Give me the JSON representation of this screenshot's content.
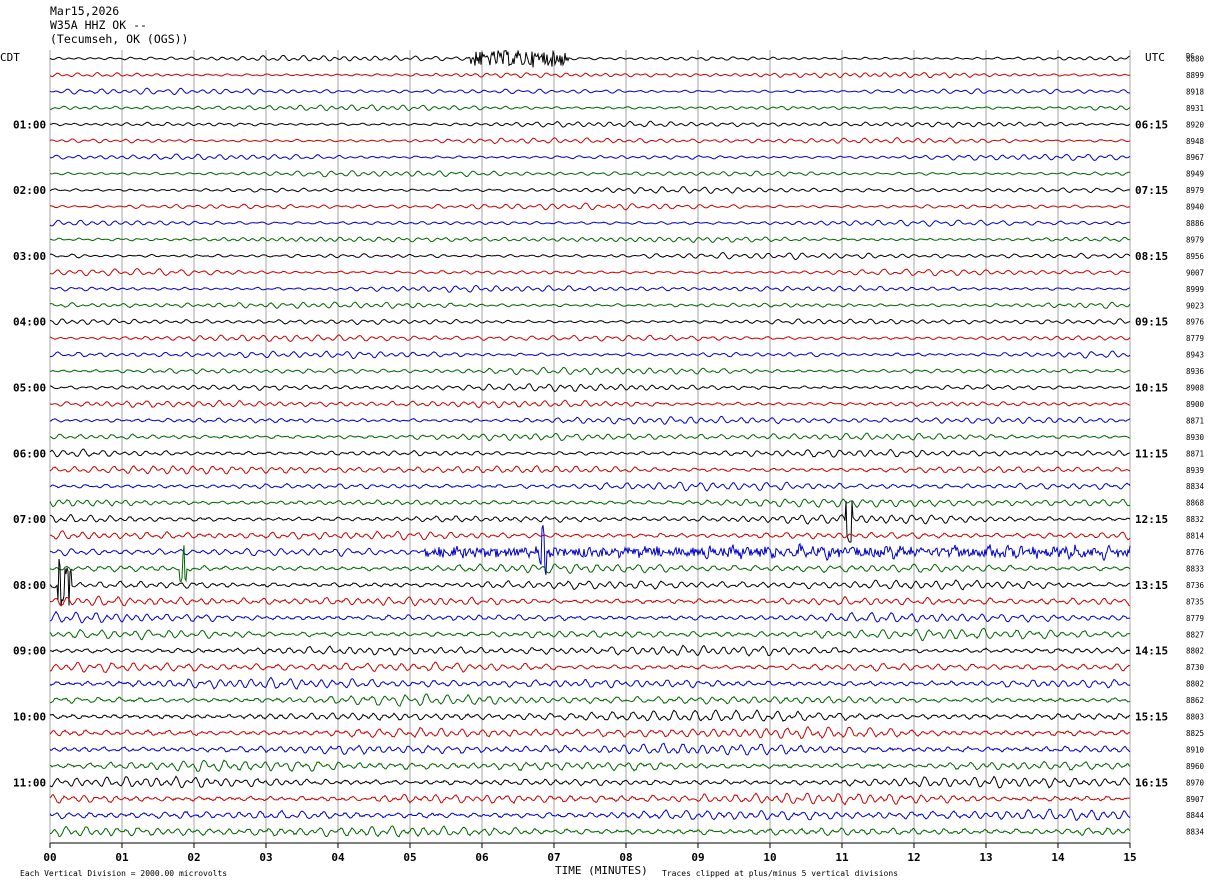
{
  "header": {
    "date": "Mar15,2026",
    "station": "W35A HHZ OK --",
    "location": "(Tecumseh, OK (OGS))"
  },
  "left_tz": "CDT",
  "right_tz": "UTC",
  "dc_label": "DC",
  "footer": {
    "scale_note": "Each Vertical Division = 2000.00 microvolts",
    "xlabel": "TIME (MINUTES)",
    "clip_note": "Traces clipped at plus/minus 5 vertical divisions"
  },
  "colors": {
    "black": "#000000",
    "red": "#cc0000",
    "blue": "#0000cc",
    "green": "#006600",
    "grid": "#808080"
  },
  "chart_data": {
    "type": "line",
    "subtype": "helicorder",
    "xlabel": "TIME (MINUTES)",
    "xlim": [
      0,
      15
    ],
    "x_ticks": [
      "00",
      "01",
      "02",
      "03",
      "04",
      "05",
      "06",
      "07",
      "08",
      "09",
      "10",
      "11",
      "12",
      "13",
      "14",
      "15"
    ],
    "grid": true,
    "trace_minutes": 15,
    "trace_color_cycle": [
      "black",
      "red",
      "blue",
      "green"
    ],
    "left_hour_labels": [
      "01:00",
      "02:00",
      "03:00",
      "04:00",
      "05:00",
      "06:00",
      "07:00",
      "08:00",
      "09:00",
      "10:00",
      "11:00"
    ],
    "right_hour_labels": [
      "06:15",
      "07:15",
      "08:15",
      "09:15",
      "10:15",
      "11:15",
      "12:15",
      "13:15",
      "14:15",
      "15:15",
      "16:15"
    ],
    "dc_offsets": [
      "8880",
      "8899",
      "8918",
      "8931",
      "8920",
      "8948",
      "8967",
      "8949",
      "8979",
      "8940",
      "8886",
      "8979",
      "8956",
      "9007",
      "8999",
      "9023",
      "8976",
      "8779",
      "8943",
      "8936",
      "8908",
      "8900",
      "8871",
      "8930",
      "8871",
      "8939",
      "8834",
      "8868",
      "8832",
      "8814",
      "8776",
      "8833",
      "8736",
      "8735",
      "8779",
      "8827",
      "8802",
      "8730",
      "8802",
      "8862",
      "8803",
      "8825",
      "8910",
      "8960",
      "8970",
      "8907",
      "8844",
      "8834"
    ],
    "trace_activity": [
      0.25,
      0.28,
      0.3,
      0.3,
      0.32,
      0.33,
      0.33,
      0.34,
      0.35,
      0.36,
      0.36,
      0.37,
      0.38,
      0.4,
      0.4,
      0.4,
      0.42,
      0.45,
      0.48,
      0.5,
      0.52,
      0.55,
      0.58,
      0.6,
      0.62,
      0.68,
      0.7,
      0.72,
      0.78,
      0.85,
      0.9,
      0.9,
      0.92,
      1.0,
      0.95,
      1.0,
      0.95,
      1.0,
      1.05,
      1.05,
      1.1,
      1.2,
      1.15,
      1.1,
      1.1,
      1.15,
      1.2,
      1.2
    ],
    "events": [
      {
        "trace": 0,
        "start_min": 5.8,
        "end_min": 7.2,
        "label": "burst"
      },
      {
        "trace": 30,
        "start_min": 5.2,
        "end_min": 15.0,
        "label": "noise"
      },
      {
        "trace": 30,
        "start_min": 6.8,
        "end_min": 6.9,
        "label": "spike"
      },
      {
        "trace": 32,
        "start_min": 0.1,
        "end_min": 0.3,
        "label": "spike"
      },
      {
        "trace": 28,
        "start_min": 11.05,
        "end_min": 11.15,
        "label": "spike"
      },
      {
        "trace": 31,
        "start_min": 1.8,
        "end_min": 1.9,
        "label": "spike"
      }
    ]
  }
}
